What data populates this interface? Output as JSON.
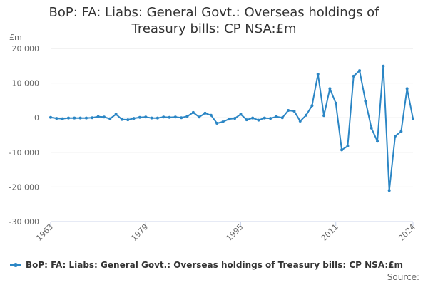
{
  "chart_data": {
    "type": "line",
    "title_line1": "BoP: FA: Liabs: General Govt.: Overseas holdings of",
    "title_line2": "Treasury bills: CP NSA:£m",
    "y_unit": "£m",
    "ylim": [
      -30000,
      20000
    ],
    "y_ticks": [
      20000,
      10000,
      0,
      -10000,
      -20000,
      -30000
    ],
    "y_tick_labels": [
      "20 000",
      "10 000",
      "0",
      "-10 000",
      "-20 000",
      "-30 000"
    ],
    "xlim": [
      1963,
      2024
    ],
    "x_ticks": [
      1963,
      1979,
      1995,
      2011,
      2024
    ],
    "x_tick_labels": [
      "1963",
      "1979",
      "1995",
      "2011",
      "2024"
    ],
    "grid": true,
    "legend_position": "bottom-left",
    "color": "#2b86c5",
    "series": [
      {
        "name": "BoP: FA: Liabs: General Govt.: Overseas holdings of Treasury bills: CP NSA:£m",
        "x": [
          1963,
          1964,
          1965,
          1966,
          1967,
          1968,
          1969,
          1970,
          1971,
          1972,
          1973,
          1974,
          1975,
          1976,
          1977,
          1978,
          1979,
          1980,
          1981,
          1982,
          1983,
          1984,
          1985,
          1986,
          1987,
          1988,
          1989,
          1990,
          1991,
          1992,
          1993,
          1994,
          1995,
          1996,
          1997,
          1998,
          1999,
          2000,
          2001,
          2002,
          2003,
          2004,
          2005,
          2006,
          2007,
          2008,
          2009,
          2010,
          2011,
          2012,
          2013,
          2014,
          2015,
          2016,
          2017,
          2018,
          2019,
          2020,
          2021,
          2022,
          2023,
          2024
        ],
        "values": [
          100,
          -200,
          -300,
          -100,
          -100,
          -100,
          -100,
          0,
          300,
          200,
          -300,
          1000,
          -500,
          -600,
          -200,
          100,
          200,
          -100,
          -100,
          200,
          100,
          200,
          0,
          400,
          1500,
          200,
          1300,
          700,
          -1600,
          -1200,
          -400,
          -200,
          1000,
          -600,
          -100,
          -700,
          -100,
          -200,
          300,
          0,
          2100,
          1900,
          -1000,
          700,
          3500,
          12600,
          600,
          8400,
          4200,
          -9300,
          -8200,
          12000,
          13600,
          4800,
          -3000,
          -6800,
          14900,
          -21000,
          -5300,
          -4000,
          8400,
          -300
        ]
      }
    ],
    "legend_label": "BoP: FA: Liabs: General Govt.: Overseas holdings of Treasury bills: CP NSA:£m",
    "source_label": "Source:"
  }
}
